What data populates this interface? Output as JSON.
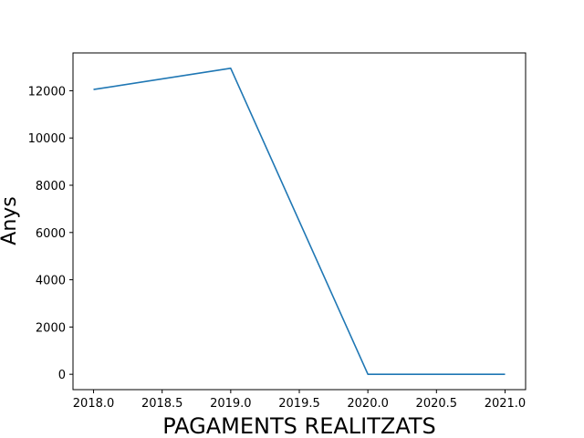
{
  "chart_data": {
    "type": "line",
    "title": "",
    "xlabel": "PAGAMENTS REALITZATS",
    "ylabel": "Anys",
    "xlim": [
      2017.85,
      2021.15
    ],
    "ylim": [
      -650,
      13600
    ],
    "xticks": [
      2018.0,
      2018.5,
      2019.0,
      2019.5,
      2020.0,
      2020.5,
      2021.0
    ],
    "xtick_labels": [
      "2018.0",
      "2018.5",
      "2019.0",
      "2019.5",
      "2020.0",
      "2020.5",
      "2021.0"
    ],
    "yticks": [
      0,
      2000,
      4000,
      6000,
      8000,
      10000,
      12000
    ],
    "ytick_labels": [
      "0",
      "2000",
      "4000",
      "6000",
      "8000",
      "10000",
      "12000"
    ],
    "grid": false,
    "series": [
      {
        "color": "#1f77b4",
        "x": [
          2018,
          2019,
          2020,
          2021
        ],
        "y": [
          12050,
          12950,
          0,
          0
        ]
      }
    ]
  }
}
